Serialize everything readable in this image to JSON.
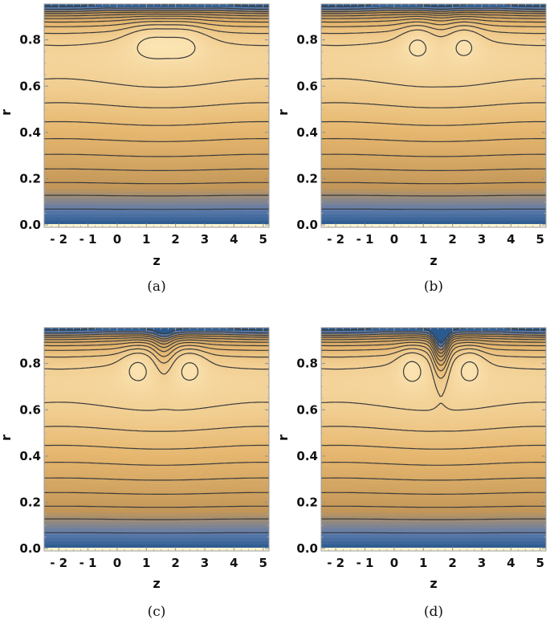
{
  "chart_data": [
    {
      "type": "contour",
      "caption": "(a)",
      "xlabel": "z",
      "ylabel": "r",
      "xlim": [
        -2.5,
        5.2
      ],
      "ylim": [
        -0.01,
        0.955
      ],
      "xticks": [
        -2,
        -1,
        0,
        1,
        2,
        3,
        4,
        5
      ],
      "xtick_labels": [
        "- 2",
        "- 1",
        "0",
        "1",
        "2",
        "3",
        "4",
        "5"
      ],
      "yticks": [
        0.0,
        0.2,
        0.4,
        0.6,
        0.8
      ],
      "ytick_labels": [
        "0.0",
        "0.2",
        "0.4",
        "0.6",
        "0.8"
      ],
      "params": {
        "centers": [
          1.1,
          2.3
        ],
        "blob_width": 0.8,
        "blob_strength": 0.07,
        "mid_dip": 0.0,
        "mid_width": 0.6
      },
      "contour_levels": [
        0.18,
        0.26,
        0.32,
        0.37,
        0.42,
        0.47,
        0.52,
        0.57,
        0.62,
        0.67,
        0.74,
        0.8,
        0.84,
        0.88,
        0.92
      ]
    },
    {
      "type": "contour",
      "caption": "(b)",
      "xlabel": "z",
      "ylabel": "r",
      "xlim": [
        -2.5,
        5.2
      ],
      "ylim": [
        -0.01,
        0.955
      ],
      "xticks": [
        -2,
        -1,
        0,
        1,
        2,
        3,
        4,
        5
      ],
      "xtick_labels": [
        "- 2",
        "- 1",
        "0",
        "1",
        "2",
        "3",
        "4",
        "5"
      ],
      "yticks": [
        0.0,
        0.2,
        0.4,
        0.6,
        0.8
      ],
      "ytick_labels": [
        "0.0",
        "0.2",
        "0.4",
        "0.6",
        "0.8"
      ],
      "params": {
        "centers": [
          0.8,
          2.4
        ],
        "blob_width": 0.6,
        "blob_strength": 0.07,
        "mid_dip": 0.02,
        "mid_width": 0.5
      },
      "contour_levels": [
        0.18,
        0.26,
        0.32,
        0.37,
        0.42,
        0.47,
        0.52,
        0.57,
        0.62,
        0.67,
        0.74,
        0.8,
        0.84,
        0.88,
        0.92
      ]
    },
    {
      "type": "contour",
      "caption": "(c)",
      "xlabel": "z",
      "ylabel": "r",
      "xlim": [
        -2.5,
        5.2
      ],
      "ylim": [
        -0.01,
        0.955
      ],
      "xticks": [
        -2,
        -1,
        0,
        1,
        2,
        3,
        4,
        5
      ],
      "xtick_labels": [
        "- 2",
        "- 1",
        "0",
        "1",
        "2",
        "3",
        "4",
        "5"
      ],
      "yticks": [
        0.0,
        0.2,
        0.4,
        0.6,
        0.8
      ],
      "ytick_labels": [
        "0.0",
        "0.2",
        "0.4",
        "0.6",
        "0.8"
      ],
      "params": {
        "centers": [
          0.7,
          2.5
        ],
        "blob_width": 0.55,
        "blob_strength": 0.075,
        "mid_dip": 0.12,
        "mid_width": 0.35
      },
      "contour_levels": [
        0.18,
        0.26,
        0.32,
        0.37,
        0.42,
        0.47,
        0.52,
        0.57,
        0.62,
        0.67,
        0.74,
        0.8,
        0.84,
        0.88,
        0.92
      ]
    },
    {
      "type": "contour",
      "caption": "(d)",
      "xlabel": "z",
      "ylabel": "r",
      "xlim": [
        -2.5,
        5.2
      ],
      "ylim": [
        -0.01,
        0.955
      ],
      "xticks": [
        -2,
        -1,
        0,
        1,
        2,
        3,
        4,
        5
      ],
      "xtick_labels": [
        "- 2",
        "- 1",
        "0",
        "1",
        "2",
        "3",
        "4",
        "5"
      ],
      "yticks": [
        0.0,
        0.2,
        0.4,
        0.6,
        0.8
      ],
      "ytick_labels": [
        "0.0",
        "0.2",
        "0.4",
        "0.6",
        "0.8"
      ],
      "params": {
        "centers": [
          0.6,
          2.6
        ],
        "blob_width": 0.5,
        "blob_strength": 0.08,
        "mid_dip": 0.35,
        "mid_width": 0.28
      },
      "contour_levels": [
        0.18,
        0.26,
        0.32,
        0.37,
        0.42,
        0.47,
        0.52,
        0.57,
        0.62,
        0.67,
        0.74,
        0.8,
        0.84,
        0.88,
        0.92
      ]
    }
  ],
  "colors": {
    "low": "#2a5a8e",
    "mid_low": "#5f7cad",
    "mid": "#c29658",
    "mid_high": "#e6b76f",
    "high": "#fde7b7",
    "peak": "#fff6d2",
    "contour_line": "#3b3b3b"
  }
}
